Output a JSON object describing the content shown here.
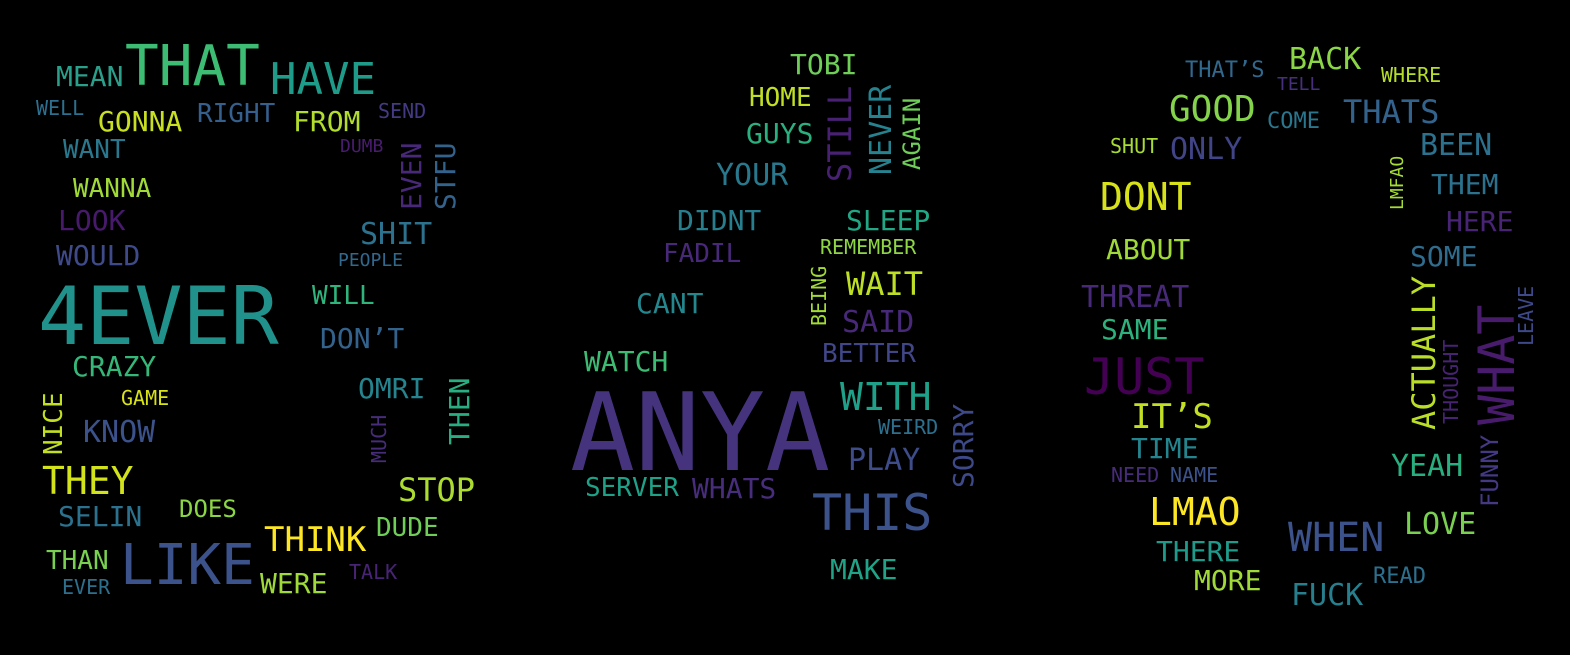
{
  "words": [
    {
      "text": "MEAN",
      "color": "#2a9f8a"
    },
    {
      "text": "THAT",
      "color": "#3dbc74"
    },
    {
      "text": "HAVE",
      "color": "#1f9c89"
    },
    {
      "text": "WELL",
      "color": "#2d6f8e"
    },
    {
      "text": "GONNA",
      "color": "#c8e021"
    },
    {
      "text": "RIGHT",
      "color": "#355f8d"
    },
    {
      "text": "FROM",
      "color": "#b2dd2d"
    },
    {
      "text": "SEND",
      "color": "#443a83"
    },
    {
      "text": "WANT",
      "color": "#2a788e"
    },
    {
      "text": "DUMB",
      "color": "#481c6e"
    },
    {
      "text": "EVEN",
      "color": "#482878"
    },
    {
      "text": "STFU",
      "color": "#33638d"
    },
    {
      "text": "WANNA",
      "color": "#a0da39"
    },
    {
      "text": "LOOK",
      "color": "#481a6c"
    },
    {
      "text": "WOULD",
      "color": "#3e4a89"
    },
    {
      "text": "SHIT",
      "color": "#2c728e"
    },
    {
      "text": "PEOPLE",
      "color": "#31688e"
    },
    {
      "text": "4EVER",
      "color": "#21918c"
    },
    {
      "text": "WILL",
      "color": "#2fb47c"
    },
    {
      "text": "DON’T",
      "color": "#33638d"
    },
    {
      "text": "CRAZY",
      "color": "#35b779"
    },
    {
      "text": "OMRI",
      "color": "#25848e"
    },
    {
      "text": "GAME",
      "color": "#d8e219"
    },
    {
      "text": "NICE",
      "color": "#c2df23"
    },
    {
      "text": "KNOW",
      "color": "#3b528b"
    },
    {
      "text": "MUCH",
      "color": "#472c7a"
    },
    {
      "text": "THEN",
      "color": "#28ae80"
    },
    {
      "text": "THEY",
      "color": "#d2e21b"
    },
    {
      "text": "STOP",
      "color": "#addc30"
    },
    {
      "text": "DOES",
      "color": "#8bd646"
    },
    {
      "text": "SELIN",
      "color": "#2c728e"
    },
    {
      "text": "THINK",
      "color": "#fde725"
    },
    {
      "text": "DUDE",
      "color": "#6ece58"
    },
    {
      "text": "THAN",
      "color": "#7ad151"
    },
    {
      "text": "LIKE",
      "color": "#3b528b"
    },
    {
      "text": "WERE",
      "color": "#9fda3a"
    },
    {
      "text": "TALK",
      "color": "#482475"
    },
    {
      "text": "EVER",
      "color": "#2d708e"
    },
    {
      "text": "TOBI",
      "color": "#6ece58"
    },
    {
      "text": "HOME",
      "color": "#c0df25"
    },
    {
      "text": "STILL",
      "color": "#482173"
    },
    {
      "text": "NEVER",
      "color": "#26828e"
    },
    {
      "text": "AGAIN",
      "color": "#6ece58"
    },
    {
      "text": "GUYS",
      "color": "#2ab07f"
    },
    {
      "text": "YOUR",
      "color": "#29798e"
    },
    {
      "text": "DIDNT",
      "color": "#277f8e"
    },
    {
      "text": "SLEEP",
      "color": "#22a785"
    },
    {
      "text": "FADIL",
      "color": "#482878"
    },
    {
      "text": "REMEMBER",
      "color": "#8ed645"
    },
    {
      "text": "BEING",
      "color": "#a2da37"
    },
    {
      "text": "WAIT",
      "color": "#bddf26"
    },
    {
      "text": "CANT",
      "color": "#24878e"
    },
    {
      "text": "SAID",
      "color": "#482878"
    },
    {
      "text": "BETTER",
      "color": "#404688"
    },
    {
      "text": "WATCH",
      "color": "#3dbc74"
    },
    {
      "text": "WITH",
      "color": "#1fa088"
    },
    {
      "text": "ANYA",
      "color": "#46337e"
    },
    {
      "text": "WEIRD",
      "color": "#2d708e"
    },
    {
      "text": "SORRY",
      "color": "#3e4989"
    },
    {
      "text": "PLAY",
      "color": "#3e4c8a"
    },
    {
      "text": "SERVER",
      "color": "#1fa187"
    },
    {
      "text": "WHATS",
      "color": "#472d7b"
    },
    {
      "text": "THIS",
      "color": "#3b528b"
    },
    {
      "text": "MAKE",
      "color": "#20a386"
    },
    {
      "text": "THAT’S",
      "color": "#31688e"
    },
    {
      "text": "BACK",
      "color": "#8bd646"
    },
    {
      "text": "WHERE",
      "color": "#b5de2b"
    },
    {
      "text": "TELL",
      "color": "#46307e"
    },
    {
      "text": "GOOD",
      "color": "#84d44b"
    },
    {
      "text": "COME",
      "color": "#2a768e"
    },
    {
      "text": "THATS",
      "color": "#33638d"
    },
    {
      "text": "SHUT",
      "color": "#a8db34"
    },
    {
      "text": "ONLY",
      "color": "#414487"
    },
    {
      "text": "BEEN",
      "color": "#2c718e"
    },
    {
      "text": "LMFAO",
      "color": "#a5db36"
    },
    {
      "text": "DONT",
      "color": "#d8e219"
    },
    {
      "text": "THEM",
      "color": "#2c728e"
    },
    {
      "text": "HERE",
      "color": "#482475"
    },
    {
      "text": "ABOUT",
      "color": "#a0da39"
    },
    {
      "text": "SOME",
      "color": "#2f6c8e"
    },
    {
      "text": "THREAT",
      "color": "#482878"
    },
    {
      "text": "ACTUALLY",
      "color": "#bade28"
    },
    {
      "text": "WHAT",
      "color": "#481b6d"
    },
    {
      "text": "LEAVE",
      "color": "#3e4989"
    },
    {
      "text": "SAME",
      "color": "#2db27d"
    },
    {
      "text": "THOUGHT",
      "color": "#482374"
    },
    {
      "text": "JUST",
      "color": "#440154"
    },
    {
      "text": "IT’S",
      "color": "#c2df23"
    },
    {
      "text": "TIME",
      "color": "#25858e"
    },
    {
      "text": "NEED",
      "color": "#472c7a"
    },
    {
      "text": "NAME",
      "color": "#3b528b"
    },
    {
      "text": "YEAH",
      "color": "#29af7f"
    },
    {
      "text": "FUNNY",
      "color": "#443983"
    },
    {
      "text": "LMAO",
      "color": "#fde725"
    },
    {
      "text": "WHEN",
      "color": "#3b528b"
    },
    {
      "text": "LOVE",
      "color": "#7ad151"
    },
    {
      "text": "THERE",
      "color": "#1e9b8a"
    },
    {
      "text": "MORE",
      "color": "#a0da39"
    },
    {
      "text": "READ",
      "color": "#2d708e"
    },
    {
      "text": "FUCK",
      "color": "#277f8e"
    }
  ]
}
